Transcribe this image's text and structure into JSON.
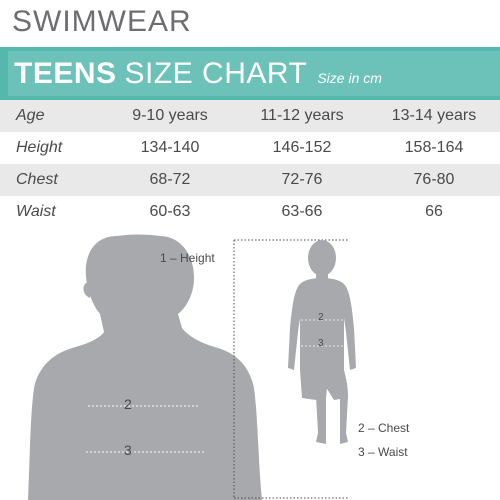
{
  "header": {
    "title": "SWIMWEAR"
  },
  "banner": {
    "bold": "TEENS",
    "light": "SIZE CHART",
    "note": "Size in cm"
  },
  "table": {
    "rows": [
      {
        "label": "Age",
        "values": [
          "9-10 years",
          "11-12 years",
          "13-14 years"
        ]
      },
      {
        "label": "Height",
        "values": [
          "134-140",
          "146-152",
          "158-164"
        ]
      },
      {
        "label": "Chest",
        "values": [
          "68-72",
          "72-76",
          "76-80"
        ]
      },
      {
        "label": "Waist",
        "values": [
          "60-63",
          "63-66",
          "66"
        ]
      }
    ]
  },
  "diagram": {
    "marker_2": "2",
    "marker_3": "3",
    "legend_height": "1 – Height",
    "legend_chest": "2 – Chest",
    "legend_waist": "3 – Waist"
  },
  "colors": {
    "banner": "#6cc2b8",
    "silhouette": "#a7a9ac",
    "row_shade": "#e9e9e9"
  }
}
